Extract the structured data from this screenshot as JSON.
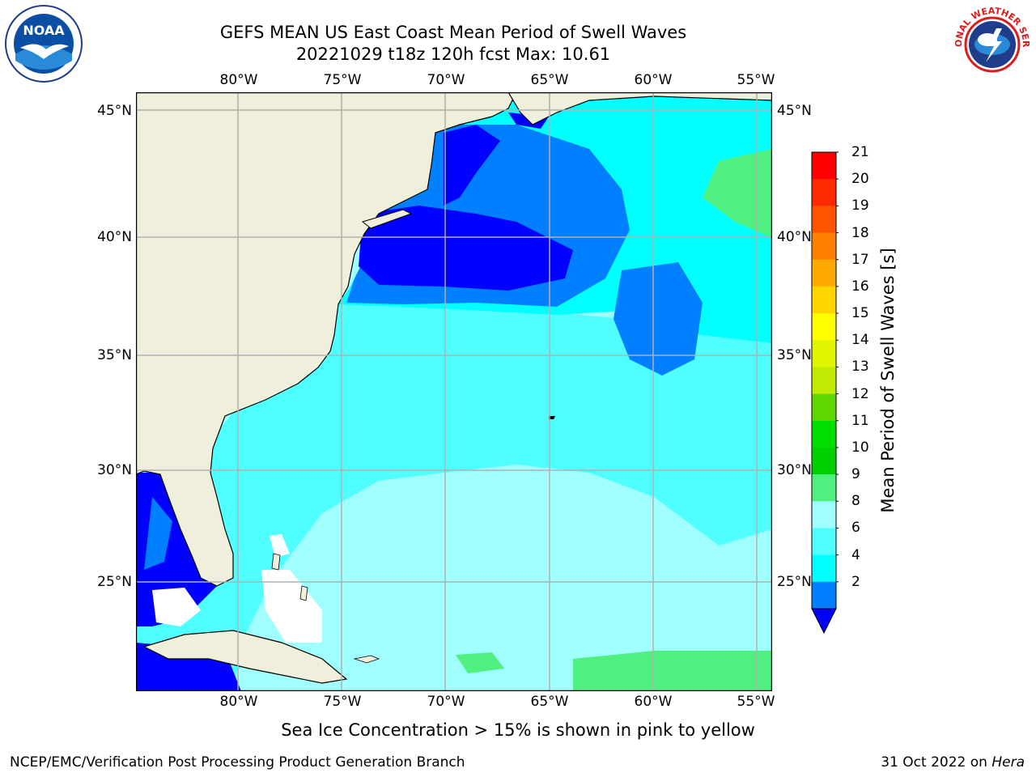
{
  "title": {
    "line1": "GEFS MEAN US East Coast Mean Period of Swell Waves",
    "line2": "20221029 t18z 120h fcst   Max: 10.61"
  },
  "map": {
    "lon_labels": [
      "80°W",
      "75°W",
      "70°W",
      "65°W",
      "60°W",
      "55°W"
    ],
    "lat_labels": [
      "45°N",
      "40°N",
      "35°N",
      "30°N",
      "25°N"
    ],
    "extent": {
      "lon_min": -85,
      "lon_max": -54.3,
      "lat_min": 20.5,
      "lat_max": 46
    }
  },
  "colorbar": {
    "label": "Mean Period of Swell Waves [s]",
    "ticks": [
      "21",
      "20",
      "19",
      "18",
      "17",
      "16",
      "15",
      "14",
      "13",
      "12",
      "11",
      "10",
      "9",
      "8",
      "6",
      "4",
      "2"
    ],
    "colors": [
      "#ff0000",
      "#ff2a00",
      "#ff5500",
      "#ff8000",
      "#ffaa00",
      "#ffd500",
      "#ffff00",
      "#e0f500",
      "#c0eb00",
      "#60d800",
      "#00e000",
      "#00d000",
      "#50f080",
      "#a0ffff",
      "#50ffff",
      "#00ffff",
      "#0080ff",
      "#0000ff"
    ]
  },
  "subtitle": "Sea Ice Concentration > 15% is shown in pink to yellow",
  "footer": {
    "left": "NCEP/EMC/Verification Post Processing Product Generation Branch",
    "right_prefix": "31 Oct 2022 on ",
    "right_host": "Hera"
  },
  "logos": {
    "left_text": "NOAA",
    "right_text": "NATIONAL WEATHER SERVICE"
  }
}
